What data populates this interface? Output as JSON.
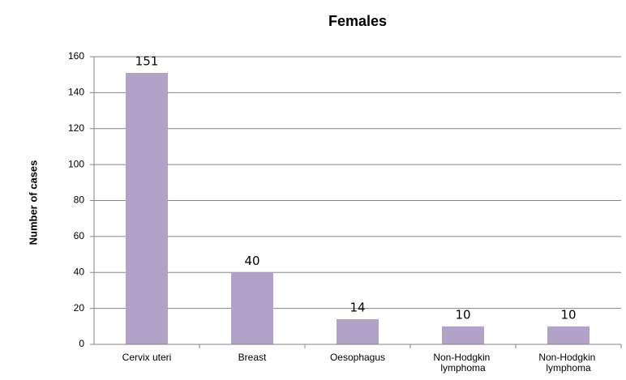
{
  "chart_data": {
    "type": "bar",
    "title": "Females",
    "y_label": "Number of cases",
    "categories": [
      "Cervix uteri",
      "Breast",
      "Oesophagus",
      "Non-Hodgkin lymphoma",
      "Non-Hodgkin lymphoma"
    ],
    "values": [
      151,
      40,
      14,
      10,
      10
    ],
    "color": "#b3a2c7",
    "ylim": [
      0,
      160
    ],
    "yticks": [
      0,
      20,
      40,
      60,
      80,
      100,
      120,
      140,
      160
    ],
    "grid": true
  }
}
